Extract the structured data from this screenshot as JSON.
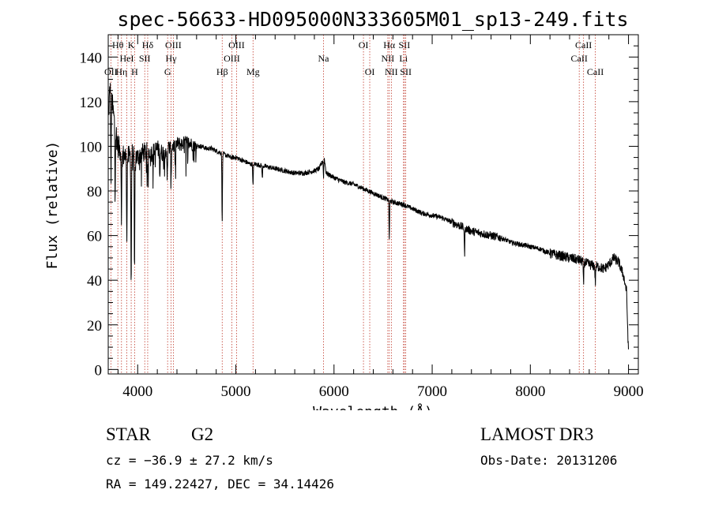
{
  "chart_data": {
    "type": "line",
    "title": "spec-56633-HD095000N333605M01_sp13-249.fits",
    "xlabel": "Wavelength (Å)",
    "ylabel": "Flux (relative)",
    "xlim": [
      3700,
      9100
    ],
    "ylim": [
      -2,
      150
    ],
    "xticks": [
      4000,
      5000,
      6000,
      7000,
      8000,
      9000
    ],
    "yticks": [
      0,
      20,
      40,
      60,
      80,
      100,
      120,
      140
    ],
    "continuum": [
      [
        3700,
        112
      ],
      [
        3720,
        128
      ],
      [
        3750,
        115
      ],
      [
        3800,
        100
      ],
      [
        3850,
        96
      ],
      [
        3900,
        95
      ],
      [
        3950,
        97
      ],
      [
        4000,
        95
      ],
      [
        4050,
        97
      ],
      [
        4100,
        98
      ],
      [
        4150,
        97
      ],
      [
        4200,
        99
      ],
      [
        4250,
        97
      ],
      [
        4300,
        99
      ],
      [
        4350,
        100
      ],
      [
        4400,
        101
      ],
      [
        4450,
        101
      ],
      [
        4500,
        102
      ],
      [
        4550,
        101
      ],
      [
        4600,
        100
      ],
      [
        4650,
        100
      ],
      [
        4700,
        99
      ],
      [
        4750,
        99
      ],
      [
        4800,
        98
      ],
      [
        4850,
        97
      ],
      [
        4900,
        96
      ],
      [
        4950,
        95
      ],
      [
        5000,
        95
      ],
      [
        5050,
        94
      ],
      [
        5100,
        93
      ],
      [
        5150,
        92
      ],
      [
        5200,
        92
      ],
      [
        5300,
        91
      ],
      [
        5400,
        90
      ],
      [
        5500,
        89
      ],
      [
        5600,
        88
      ],
      [
        5700,
        88
      ],
      [
        5800,
        89
      ],
      [
        5850,
        90
      ],
      [
        5900,
        95
      ],
      [
        5920,
        88
      ],
      [
        6000,
        86
      ],
      [
        6100,
        84
      ],
      [
        6200,
        83
      ],
      [
        6300,
        81
      ],
      [
        6400,
        79
      ],
      [
        6500,
        77
      ],
      [
        6600,
        75
      ],
      [
        6700,
        74
      ],
      [
        6800,
        72
      ],
      [
        6900,
        70
      ],
      [
        7000,
        69
      ],
      [
        7100,
        68
      ],
      [
        7200,
        66
      ],
      [
        7300,
        64
      ],
      [
        7400,
        62
      ],
      [
        7500,
        61
      ],
      [
        7600,
        60
      ],
      [
        7700,
        59
      ],
      [
        7800,
        57
      ],
      [
        7900,
        56
      ],
      [
        8000,
        55
      ],
      [
        8100,
        54
      ],
      [
        8200,
        52
      ],
      [
        8300,
        51
      ],
      [
        8400,
        50
      ],
      [
        8500,
        49
      ],
      [
        8600,
        47
      ],
      [
        8700,
        46
      ],
      [
        8750,
        45
      ],
      [
        8800,
        47
      ],
      [
        8850,
        50
      ],
      [
        8900,
        48
      ],
      [
        8950,
        42
      ],
      [
        8980,
        35
      ],
      [
        9000,
        6
      ]
    ],
    "absorption": [
      [
        3728,
        40
      ],
      [
        3770,
        30
      ],
      [
        3835,
        28
      ],
      [
        3889,
        35
      ],
      [
        3934,
        60
      ],
      [
        3968,
        55
      ],
      [
        4101,
        12
      ],
      [
        4226,
        10
      ],
      [
        4300,
        15
      ],
      [
        4340,
        18
      ],
      [
        4383,
        10
      ],
      [
        4861,
        30
      ],
      [
        5175,
        10
      ],
      [
        5270,
        6
      ],
      [
        5893,
        8
      ],
      [
        6563,
        17
      ],
      [
        7330,
        12
      ],
      [
        8542,
        10
      ],
      [
        8662,
        8
      ]
    ],
    "spectral_lines": [
      {
        "label": "Hθ",
        "wavelength": 3798,
        "row": 1
      },
      {
        "label": "OII",
        "wavelength": 3727,
        "row": 3
      },
      {
        "label": "Hη",
        "wavelength": 3835,
        "row": 3
      },
      {
        "label": "HeI",
        "wavelength": 3889,
        "row": 2
      },
      {
        "label": "H",
        "wavelength": 3969,
        "row": 3
      },
      {
        "label": "K",
        "wavelength": 3934,
        "row": 1
      },
      {
        "label": "Hδ",
        "wavelength": 4102,
        "row": 1
      },
      {
        "label": "SII",
        "wavelength": 4072,
        "row": 2
      },
      {
        "label": "OIII",
        "wavelength": 4363,
        "row": 1
      },
      {
        "label": "Hγ",
        "wavelength": 4340,
        "row": 2
      },
      {
        "label": "G",
        "wavelength": 4305,
        "row": 3
      },
      {
        "label": "Hβ",
        "wavelength": 4861,
        "row": 3
      },
      {
        "label": "OIII",
        "wavelength": 5007,
        "row": 1
      },
      {
        "label": "OIII",
        "wavelength": 4959,
        "row": 2
      },
      {
        "label": "Mg",
        "wavelength": 5175,
        "row": 3
      },
      {
        "label": "Na",
        "wavelength": 5893,
        "row": 2
      },
      {
        "label": "OI",
        "wavelength": 6300,
        "row": 1
      },
      {
        "label": "OI",
        "wavelength": 6364,
        "row": 3
      },
      {
        "label": "Hα",
        "wavelength": 6563,
        "row": 1
      },
      {
        "label": "NII",
        "wavelength": 6548,
        "row": 2
      },
      {
        "label": "NII",
        "wavelength": 6584,
        "row": 3
      },
      {
        "label": "SII",
        "wavelength": 6717,
        "row": 1
      },
      {
        "label": "Li",
        "wavelength": 6708,
        "row": 2
      },
      {
        "label": "SII",
        "wavelength": 6731,
        "row": 3
      },
      {
        "label": "CaII",
        "wavelength": 8542,
        "row": 1
      },
      {
        "label": "CaII",
        "wavelength": 8498,
        "row": 2
      },
      {
        "label": "CaII",
        "wavelength": 8662,
        "row": 3
      }
    ]
  },
  "info": {
    "class_label": "STAR",
    "subclass_label": "G2",
    "redshift_line": "cz = −36.9 ± 27.2 km/s",
    "coords_line": "RA = 149.22427, DEC =  34.14426",
    "survey_label": "LAMOST DR3",
    "obs_date_line": "Obs-Date: 20131206"
  },
  "colors": {
    "spectrum": "#000000",
    "line_markers": "#c0392b",
    "axes": "#000000"
  }
}
